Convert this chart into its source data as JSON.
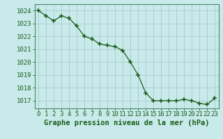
{
  "hours": [
    0,
    1,
    2,
    3,
    4,
    5,
    6,
    7,
    8,
    9,
    10,
    11,
    12,
    13,
    14,
    15,
    16,
    17,
    18,
    19,
    20,
    21,
    22,
    23
  ],
  "pressure": [
    1024.0,
    1023.6,
    1023.2,
    1023.6,
    1023.4,
    1022.8,
    1022.0,
    1021.8,
    1021.4,
    1021.3,
    1021.2,
    1020.9,
    1020.0,
    1019.0,
    1017.6,
    1017.0,
    1017.0,
    1017.0,
    1017.0,
    1017.1,
    1017.0,
    1016.8,
    1016.7,
    1017.2
  ],
  "line_color": "#1a5c1a",
  "marker_color": "#1a5c1a",
  "bg_color": "#c8eaea",
  "grid_color": "#aacaca",
  "xlabel": "Graphe pression niveau de la mer (hPa)",
  "xlabel_color": "#1a5c1a",
  "tick_color": "#1a5c1a",
  "ylim": [
    1016.4,
    1024.5
  ],
  "yticks": [
    1017,
    1018,
    1019,
    1020,
    1021,
    1022,
    1023,
    1024
  ],
  "xticks": [
    0,
    1,
    2,
    3,
    4,
    5,
    6,
    7,
    8,
    9,
    10,
    11,
    12,
    13,
    14,
    15,
    16,
    17,
    18,
    19,
    20,
    21,
    22,
    23
  ],
  "axis_fontsize": 6.5,
  "xlabel_fontsize": 7.5
}
